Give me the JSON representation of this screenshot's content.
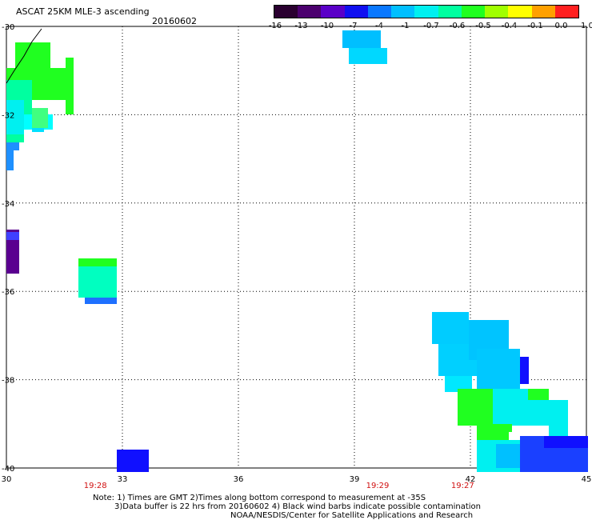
{
  "header": {
    "title": "ASCAT 25KM MLE-3 ascending",
    "date": "20160602"
  },
  "colorbar": {
    "labels": [
      "-16",
      "-13",
      "-10",
      "-7",
      "-4",
      "-1",
      "-0.7",
      "-0.6",
      "-0.5",
      "-0.4",
      "-0.1",
      "0.0",
      "1.0"
    ],
    "colors": [
      "#2a0030",
      "#4b006e",
      "#5a00c8",
      "#1010f0",
      "#0a78ff",
      "#00bfff",
      "#00f0f0",
      "#00ffa0",
      "#20ff20",
      "#a0ff00",
      "#ffff00",
      "#ffa000",
      "#ff2020"
    ]
  },
  "map": {
    "lon_ticks": [
      "30",
      "33",
      "36",
      "39",
      "42",
      "45"
    ],
    "lat_ticks": [
      "-30",
      "-32",
      "-34",
      "-36",
      "-38",
      "-40"
    ],
    "time_labels": [
      {
        "text": "19:28",
        "lon": 32.3
      },
      {
        "text": "19:29",
        "lon": 39.6
      },
      {
        "text": "19:27",
        "lon": 41.8
      }
    ]
  },
  "notes": {
    "line1": "Note: 1) Times are GMT 2)Times along bottom correspond to measurement at -35S",
    "line2": "3)Data buffer is 22 hrs from 20160602 4) Black wind barbs indicate possible contamination",
    "line3": "NOAA/NESDIS/Center for Satellite Applications and Research"
  }
}
